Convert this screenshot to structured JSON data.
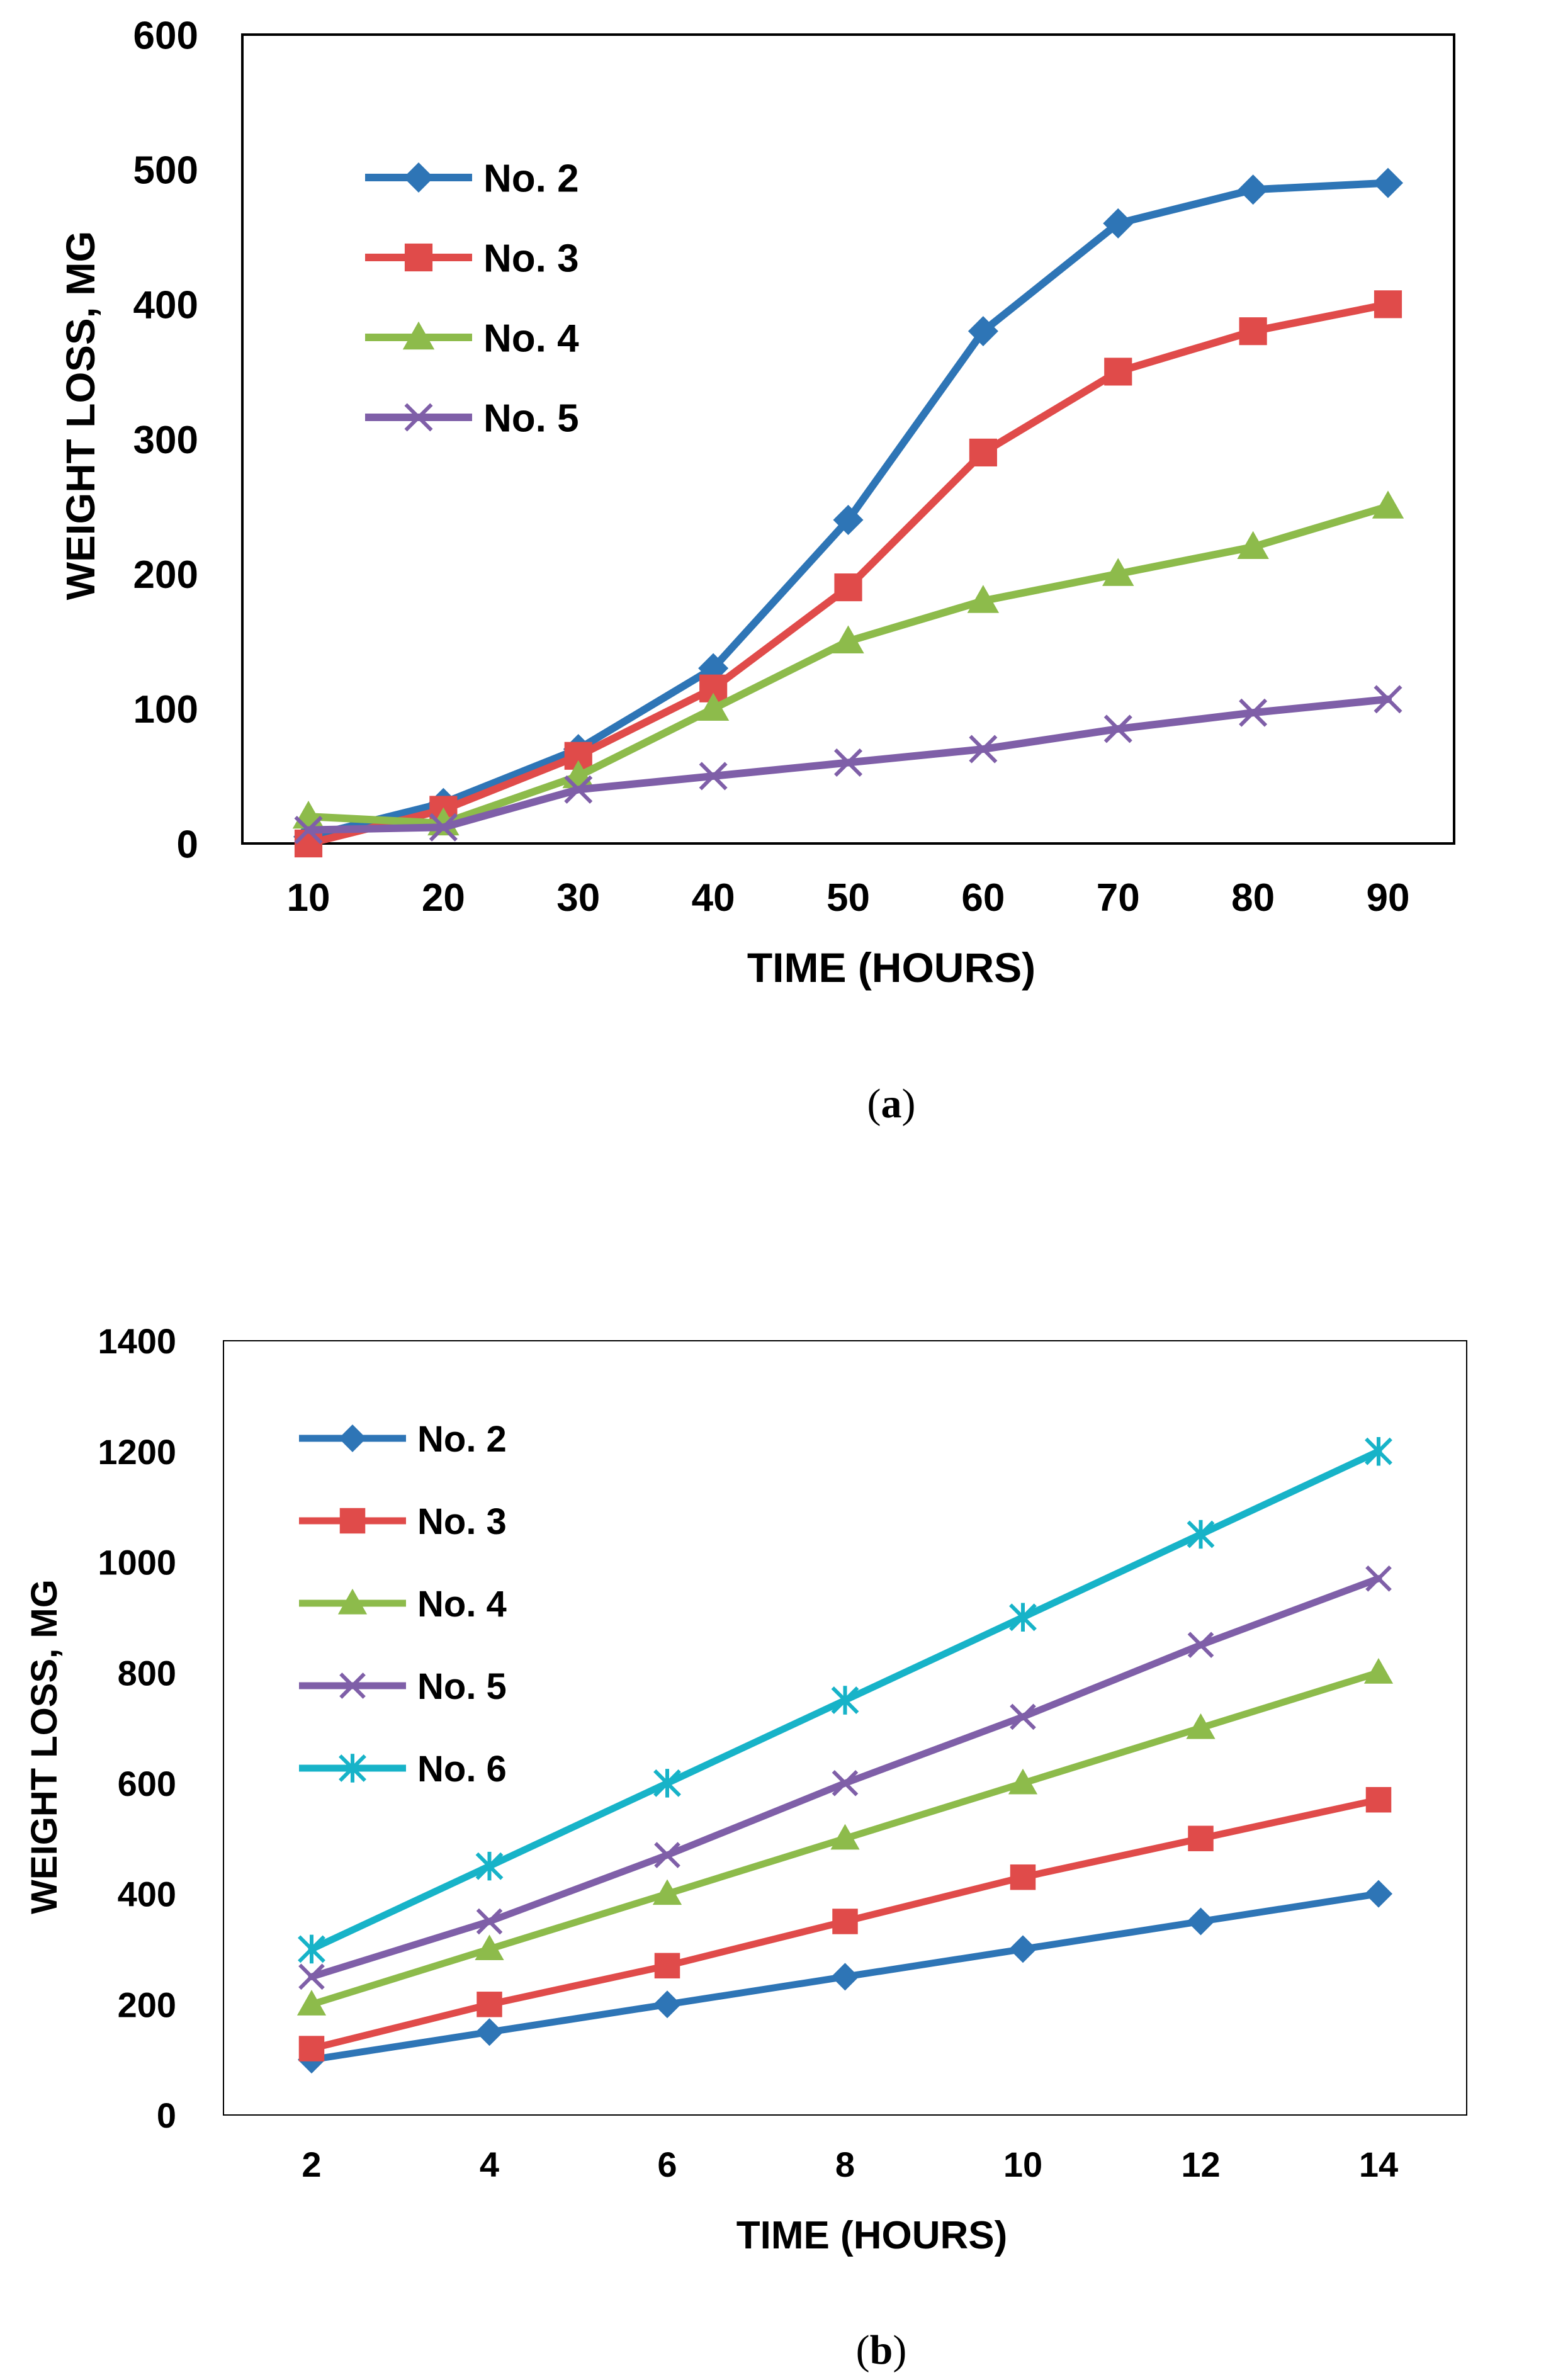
{
  "chart_data": [
    {
      "type": "line",
      "xlabel": "TIME (HOURS)",
      "ylabel": "WEIGHT LOSS, MG",
      "x": [
        10,
        20,
        30,
        40,
        50,
        60,
        70,
        80,
        90
      ],
      "ylim": [
        0,
        600
      ],
      "yticks": [
        0,
        100,
        200,
        300,
        400,
        500,
        600
      ],
      "caption": "a",
      "legend_position": "top-left",
      "series": [
        {
          "name": "No. 2",
          "color": "#2E75B6",
          "marker": "diamond",
          "values": [
            5,
            30,
            70,
            130,
            240,
            380,
            460,
            485,
            490
          ]
        },
        {
          "name": "No. 3",
          "color": "#E04B4A",
          "marker": "square",
          "values": [
            0,
            25,
            65,
            115,
            190,
            290,
            350,
            380,
            400
          ]
        },
        {
          "name": "No. 4",
          "color": "#8DBB4B",
          "marker": "triangle",
          "values": [
            20,
            15,
            50,
            100,
            150,
            180,
            200,
            220,
            250
          ]
        },
        {
          "name": "No. 5",
          "color": "#7F5FA8",
          "marker": "x",
          "values": [
            10,
            12,
            40,
            50,
            60,
            70,
            85,
            97,
            107
          ]
        }
      ]
    },
    {
      "type": "line",
      "xlabel": "TIME (HOURS)",
      "ylabel": "WEIGHT LOSS, MG",
      "x": [
        2,
        4,
        6,
        8,
        10,
        12,
        14
      ],
      "ylim": [
        0,
        1400
      ],
      "yticks": [
        0,
        200,
        400,
        600,
        800,
        1000,
        1200,
        1400
      ],
      "caption": "b",
      "legend_position": "top-left",
      "series": [
        {
          "name": "No. 2",
          "color": "#2E75B6",
          "marker": "diamond",
          "values": [
            100,
            150,
            200,
            250,
            300,
            350,
            400
          ]
        },
        {
          "name": "No. 3",
          "color": "#E04B4A",
          "marker": "square",
          "values": [
            120,
            200,
            270,
            350,
            430,
            500,
            570
          ]
        },
        {
          "name": "No. 4",
          "color": "#8DBB4B",
          "marker": "triangle",
          "values": [
            200,
            300,
            400,
            500,
            600,
            700,
            800
          ]
        },
        {
          "name": "No. 5",
          "color": "#7F5FA8",
          "marker": "x",
          "values": [
            250,
            350,
            470,
            600,
            720,
            850,
            970
          ]
        },
        {
          "name": "No. 6",
          "color": "#17B3C8",
          "marker": "asterisk",
          "values": [
            300,
            450,
            600,
            750,
            900,
            1050,
            1200
          ]
        }
      ]
    }
  ]
}
